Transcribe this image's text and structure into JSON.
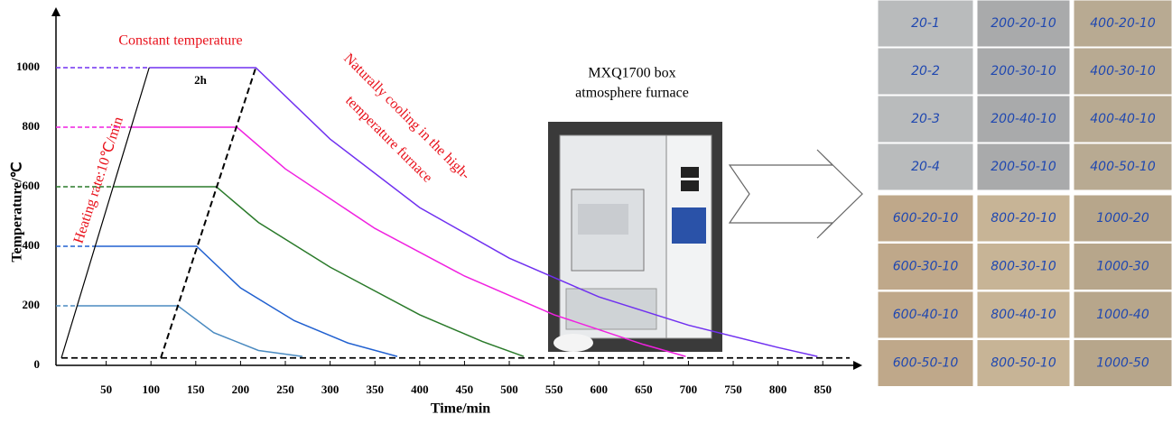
{
  "chart_data": {
    "type": "line",
    "x_label": "Time/min",
    "y_label": "Temperature/℃",
    "xlim": [
      0,
      880
    ],
    "ylim": [
      0,
      1000
    ],
    "xticks": [
      50,
      100,
      150,
      200,
      250,
      300,
      350,
      400,
      450,
      500,
      550,
      600,
      650,
      700,
      750,
      800,
      850
    ],
    "yticks": [
      0,
      200,
      400,
      600,
      800,
      1000
    ],
    "series": [
      {
        "color": "#7030f0",
        "x": [
          98,
          217,
          300,
          400,
          500,
          600,
          700,
          800,
          844
        ],
        "values": [
          1000,
          1000,
          760,
          530,
          360,
          230,
          135,
          60,
          30
        ]
      },
      {
        "color": "#f020e0",
        "x": [
          78,
          196,
          250,
          350,
          450,
          550,
          650,
          697
        ],
        "values": [
          800,
          800,
          660,
          460,
          300,
          170,
          70,
          30
        ]
      },
      {
        "color": "#2a7a2a",
        "x": [
          58,
          173,
          220,
          300,
          400,
          470,
          516
        ],
        "values": [
          600,
          600,
          480,
          330,
          170,
          80,
          30
        ]
      },
      {
        "color": "#2060d0",
        "x": [
          38,
          151,
          200,
          260,
          320,
          375
        ],
        "values": [
          400,
          400,
          260,
          150,
          75,
          30
        ]
      },
      {
        "color": "#4a8ac0",
        "x": [
          18,
          130,
          170,
          220,
          269
        ],
        "values": [
          200,
          200,
          110,
          50,
          30
        ]
      }
    ],
    "heating_line": {
      "x": [
        0,
        98
      ],
      "values": [
        25,
        1000
      ]
    },
    "end_line": {
      "x": [
        111,
        217
      ],
      "values": [
        25,
        1000
      ]
    },
    "base_line": {
      "x": [
        0,
        880
      ],
      "values": [
        25,
        25
      ]
    },
    "annotations": {
      "constant": "Constant temperature",
      "hold": "2h",
      "heating": "Heating rate:10℃/min",
      "cooling": [
        "Naturally cooling in the high-",
        "temperature furnace"
      ],
      "furnace": [
        "MXQ1700 box",
        "atmosphere furnace"
      ]
    }
  },
  "samples": [
    [
      "20-1",
      "200-20-10",
      "400-20-10"
    ],
    [
      "20-2",
      "200-30-10",
      "400-30-10"
    ],
    [
      "20-3",
      "200-40-10",
      "400-40-10"
    ],
    [
      "20-4",
      "200-50-10",
      "400-50-10"
    ],
    [
      "600-20-10",
      "800-20-10",
      "1000-20"
    ],
    [
      "600-30-10",
      "800-30-10",
      "1000-30"
    ],
    [
      "600-40-10",
      "800-40-10",
      "1000-40"
    ],
    [
      "600-50-10",
      "800-50-10",
      "1000-50"
    ]
  ]
}
